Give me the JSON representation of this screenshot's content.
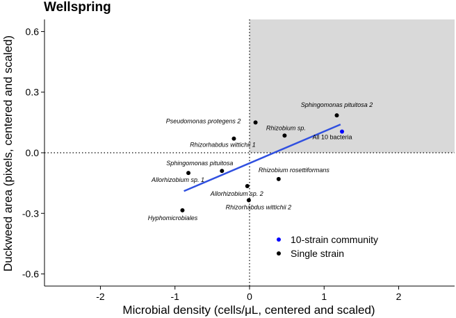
{
  "chart_data": {
    "type": "scatter",
    "title": "Wellspring",
    "xlabel": "Microbial density (cells/μL, centered and scaled)",
    "ylabel": "Duckweed area (pixels, centered and scaled)",
    "xlim": [
      -2.75,
      2.75
    ],
    "ylim": [
      -0.66,
      0.66
    ],
    "xticks": [
      -2,
      -1,
      0,
      1,
      2
    ],
    "yticks": [
      -0.6,
      -0.3,
      0.0,
      0.3,
      0.6
    ],
    "ytick_labels": [
      "-0.6",
      "-0.3",
      "0.0",
      "0.3",
      "0.6"
    ],
    "xtick_labels": [
      "-2",
      "-1",
      "0",
      "1",
      "2"
    ],
    "reference_lines": {
      "x": 0,
      "y": 0,
      "style": "dotted"
    },
    "shaded_quadrant": {
      "x": [
        0,
        2.75
      ],
      "y": [
        0,
        0.66
      ],
      "color": "#d9d9d9"
    },
    "regression_line": {
      "x": [
        -0.88,
        1.22
      ],
      "y": [
        -0.19,
        0.14
      ],
      "color": "#3050e0"
    },
    "colors": {
      "community": "#0000ff",
      "single": "#000000",
      "fit": "#3050e0"
    },
    "legend": {
      "position": "bottom-right",
      "entries": [
        {
          "label": "10-strain community",
          "color": "#0000ff"
        },
        {
          "label": "Single strain",
          "color": "#000000"
        }
      ]
    },
    "points": [
      {
        "label": "Sphingomonas pituitosa 2",
        "x": 1.17,
        "y": 0.185,
        "group": "single",
        "dx": 0,
        "dy": -12,
        "anchor": "middle"
      },
      {
        "label": "All 10 bacteria",
        "x": 1.24,
        "y": 0.105,
        "group": "community",
        "dx": -14,
        "dy": 11,
        "anchor": "middle"
      },
      {
        "label": "Pseudomonas protegens 2",
        "x": 0.08,
        "y": 0.15,
        "group": "single",
        "dx": -75,
        "dy": 1,
        "anchor": "middle"
      },
      {
        "label": "Rhizobium sp.",
        "x": 0.47,
        "y": 0.085,
        "group": "single",
        "dx": 2,
        "dy": -8,
        "anchor": "middle"
      },
      {
        "label": "Rhizorhabdus wittichii 1",
        "x": -0.21,
        "y": 0.07,
        "group": "single",
        "dx": -16,
        "dy": 12,
        "anchor": "middle"
      },
      {
        "label": "Sphingomonas pituitosa",
        "x": -0.37,
        "y": -0.09,
        "group": "single",
        "dx": -32,
        "dy": -8,
        "anchor": "middle"
      },
      {
        "label": "Allorhizobium sp. 1",
        "x": -0.82,
        "y": -0.1,
        "group": "single",
        "dx": -15,
        "dy": 13,
        "anchor": "middle"
      },
      {
        "label": "Rhizobium rosettiformans",
        "x": 0.39,
        "y": -0.13,
        "group": "single",
        "dx": 22,
        "dy": -10,
        "anchor": "middle"
      },
      {
        "label": "Allorhizobium sp. 2",
        "x": -0.03,
        "y": -0.165,
        "group": "single",
        "dx": -15,
        "dy": 14,
        "anchor": "middle"
      },
      {
        "label": "Rhizorhabdus wittichii 2",
        "x": -0.01,
        "y": -0.235,
        "group": "single",
        "dx": 14,
        "dy": 13,
        "anchor": "middle"
      },
      {
        "label": "Hyphomicrobiales",
        "x": -0.9,
        "y": -0.285,
        "group": "single",
        "dx": -14,
        "dy": 14,
        "anchor": "middle"
      }
    ]
  }
}
